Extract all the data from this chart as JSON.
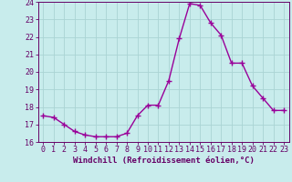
{
  "x": [
    0,
    1,
    2,
    3,
    4,
    5,
    6,
    7,
    8,
    9,
    10,
    11,
    12,
    13,
    14,
    15,
    16,
    17,
    18,
    19,
    20,
    21,
    22,
    23
  ],
  "y": [
    17.5,
    17.4,
    17.0,
    16.6,
    16.4,
    16.3,
    16.3,
    16.3,
    16.5,
    17.5,
    18.1,
    18.1,
    19.5,
    21.9,
    23.9,
    23.8,
    22.8,
    22.1,
    20.5,
    20.5,
    19.2,
    18.5,
    17.8,
    17.8
  ],
  "line_color": "#990099",
  "marker": "+",
  "marker_size": 4,
  "marker_lw": 1.0,
  "bg_color": "#c8ecec",
  "grid_color": "#aad4d4",
  "xlabel": "Windchill (Refroidissement éolien,°C)",
  "xlabel_fontsize": 6.5,
  "ylim": [
    16,
    24
  ],
  "xlim": [
    -0.5,
    23.5
  ],
  "yticks": [
    16,
    17,
    18,
    19,
    20,
    21,
    22,
    23,
    24
  ],
  "xticks": [
    0,
    1,
    2,
    3,
    4,
    5,
    6,
    7,
    8,
    9,
    10,
    11,
    12,
    13,
    14,
    15,
    16,
    17,
    18,
    19,
    20,
    21,
    22,
    23
  ],
  "tick_fontsize": 6,
  "tick_color": "#660066",
  "spine_color": "#660066",
  "line_width": 1.0
}
